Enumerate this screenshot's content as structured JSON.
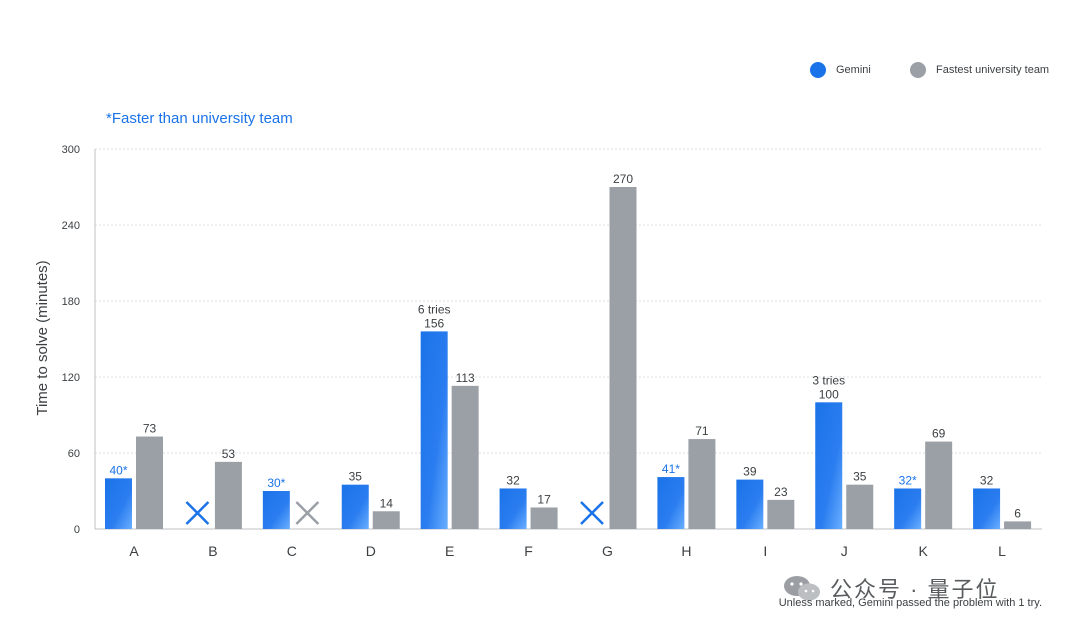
{
  "legend": {
    "gemini_label": "Gemini",
    "team_label": "Fastest university team"
  },
  "note": "*Faster than university team",
  "footnote": "Unless marked, Gemini passed the problem with 1 try.",
  "watermark": "公众号 · 量子位",
  "colors": {
    "gemini": "#1a73e8",
    "team": "#9aa0a6",
    "text": "#3c4043",
    "grid": "#dadce0"
  },
  "chart_data": {
    "type": "bar",
    "ylabel": "Time to solve (minutes)",
    "ylim": [
      0,
      300
    ],
    "yticks": [
      0,
      60,
      120,
      180,
      240,
      300
    ],
    "categories": [
      "A",
      "B",
      "C",
      "D",
      "E",
      "F",
      "G",
      "H",
      "I",
      "J",
      "K",
      "L"
    ],
    "series": [
      {
        "name": "Gemini",
        "values": [
          40,
          null,
          30,
          35,
          156,
          32,
          null,
          41,
          39,
          100,
          32,
          32
        ],
        "labels": [
          "40*",
          "",
          "30*",
          "35",
          "156",
          "32",
          "",
          "41*",
          "39",
          "100",
          "32*",
          "32"
        ],
        "faster": [
          true,
          false,
          true,
          false,
          false,
          false,
          false,
          true,
          false,
          false,
          true,
          false
        ],
        "annotations": [
          "",
          "",
          "",
          "",
          "6 tries",
          "",
          "",
          "",
          "",
          "3 tries",
          "",
          ""
        ]
      },
      {
        "name": "Fastest university team",
        "values": [
          73,
          53,
          null,
          14,
          113,
          17,
          270,
          71,
          23,
          35,
          69,
          6
        ],
        "labels": [
          "73",
          "53",
          "",
          "14",
          "113",
          "17",
          "270",
          "71",
          "23",
          "35",
          "69",
          "6"
        ]
      }
    ]
  }
}
